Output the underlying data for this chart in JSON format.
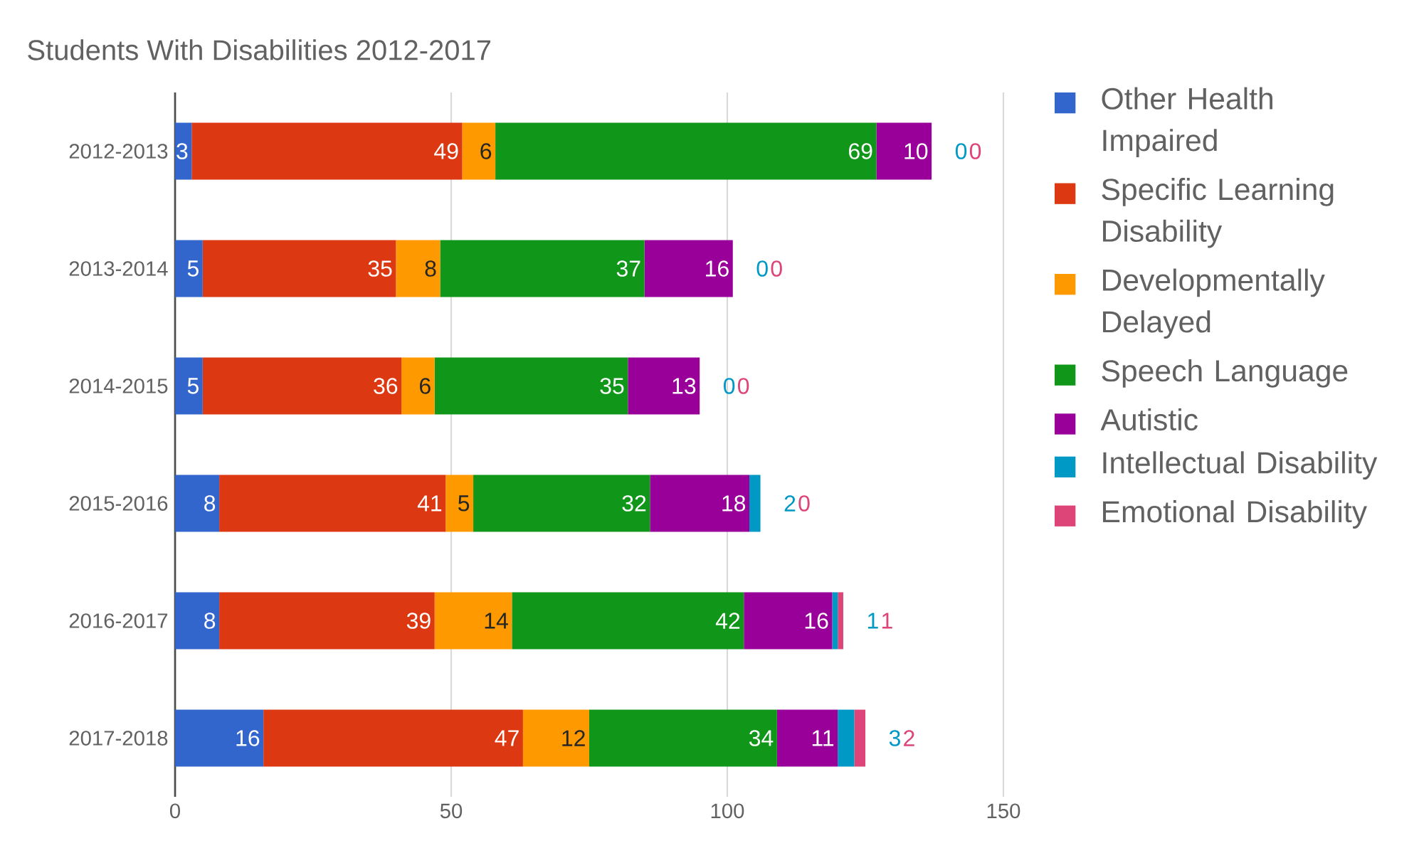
{
  "chart_data": {
    "type": "bar",
    "orientation": "horizontal",
    "stacked": true,
    "title": "Students With Disabilities 2012-2017",
    "categories": [
      "2012-2013",
      "2013-2014",
      "2014-2015",
      "2015-2016",
      "2016-2017",
      "2017-2018"
    ],
    "series": [
      {
        "name": "Other Health Impaired",
        "color": "#3366cc",
        "values": [
          3,
          5,
          5,
          8,
          8,
          16
        ]
      },
      {
        "name": "Specific Learning Disability",
        "color": "#dc3912",
        "values": [
          49,
          35,
          36,
          41,
          39,
          47
        ]
      },
      {
        "name": "Developmentally Delayed",
        "color": "#ff9900",
        "values": [
          6,
          8,
          6,
          5,
          14,
          12
        ]
      },
      {
        "name": "Speech Language",
        "color": "#109618",
        "values": [
          69,
          37,
          35,
          32,
          42,
          34
        ]
      },
      {
        "name": "Autistic",
        "color": "#990099",
        "values": [
          10,
          16,
          13,
          18,
          16,
          11
        ]
      },
      {
        "name": "Intellectual Disability",
        "color": "#0099c6",
        "values": [
          0,
          0,
          0,
          2,
          1,
          3
        ]
      },
      {
        "name": "Emotional Disability",
        "color": "#dd4477",
        "values": [
          0,
          0,
          0,
          0,
          1,
          2
        ]
      }
    ],
    "xlim": [
      0,
      150
    ],
    "xticks": [
      0,
      50,
      100,
      150
    ],
    "grid": "x",
    "legend": "right",
    "data_labels": true
  }
}
